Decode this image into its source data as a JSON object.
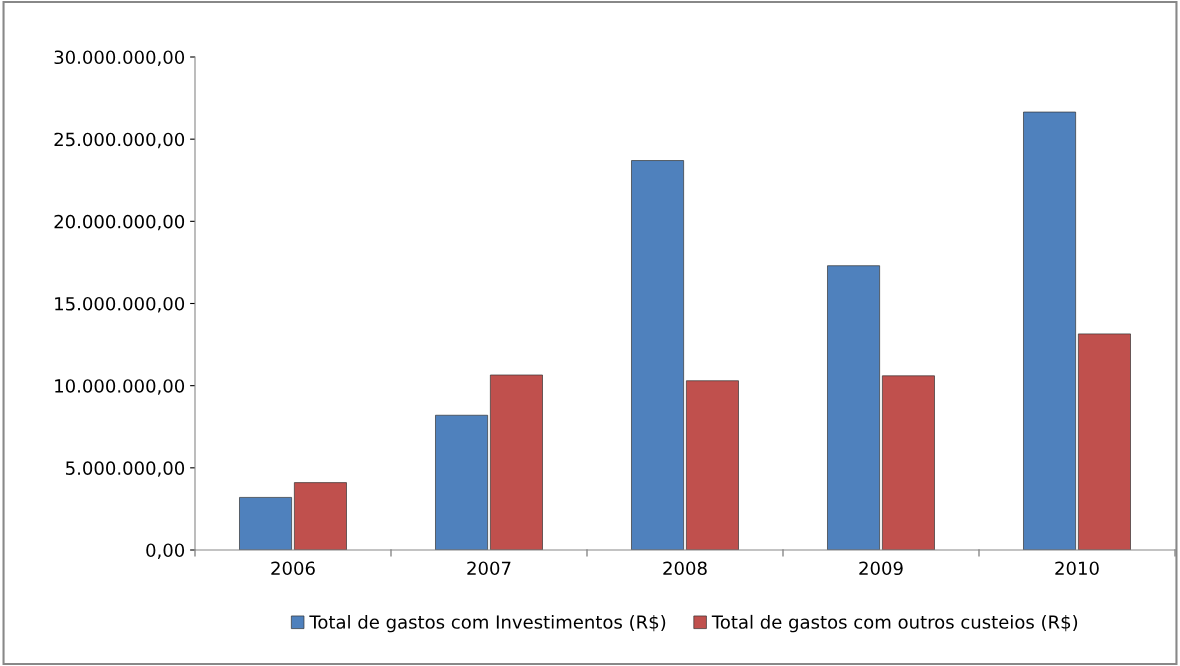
{
  "chart_data": {
    "type": "bar",
    "categories": [
      "2006",
      "2007",
      "2008",
      "2009",
      "2010"
    ],
    "series": [
      {
        "name": "Total de gastos com Investimentos (R$)",
        "color": "#4f81bd",
        "values": [
          3200000,
          8200000,
          23700000,
          17300000,
          26650000
        ]
      },
      {
        "name": "Total de gastos com outros custeios (R$)",
        "color": "#c0504d",
        "values": [
          4100000,
          10650000,
          10300000,
          10600000,
          13150000
        ]
      }
    ],
    "ylim": [
      0,
      30000000
    ],
    "yticks": [
      {
        "value": 0,
        "label": "0,00"
      },
      {
        "value": 5000000,
        "label": "5.000.000,00"
      },
      {
        "value": 10000000,
        "label": "10.000.000,00"
      },
      {
        "value": 15000000,
        "label": "15.000.000,00"
      },
      {
        "value": 20000000,
        "label": "20.000.000,00"
      },
      {
        "value": 25000000,
        "label": "25.000.000,00"
      },
      {
        "value": 30000000,
        "label": "30.000.000,00"
      }
    ],
    "grid": false,
    "legend": "bottom"
  }
}
